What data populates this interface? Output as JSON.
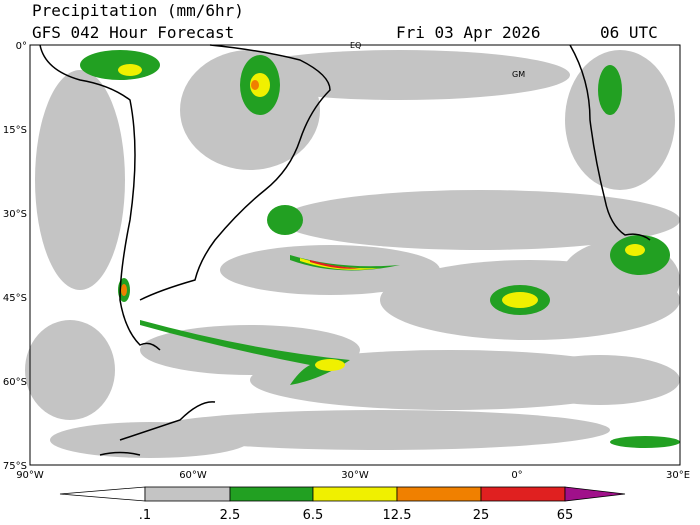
{
  "header": {
    "title": "Precipitation (mm/6hr)",
    "subtitle": "GFS 042 Hour Forecast",
    "date": "Fri 03 Apr 2026",
    "time": "06 UTC"
  },
  "map": {
    "latitude_labels": [
      "0°",
      "15°S",
      "30°S",
      "45°S",
      "60°S",
      "75°S"
    ],
    "longitude_labels": [
      "90°W",
      "60°W",
      "30°W",
      "0°",
      "30°E"
    ],
    "place_labels": [
      "EQ",
      "GM"
    ]
  },
  "colorbar": {
    "labels": [
      ".1",
      "2.5",
      "6.5",
      "12.5",
      "25",
      "65"
    ]
  }
}
